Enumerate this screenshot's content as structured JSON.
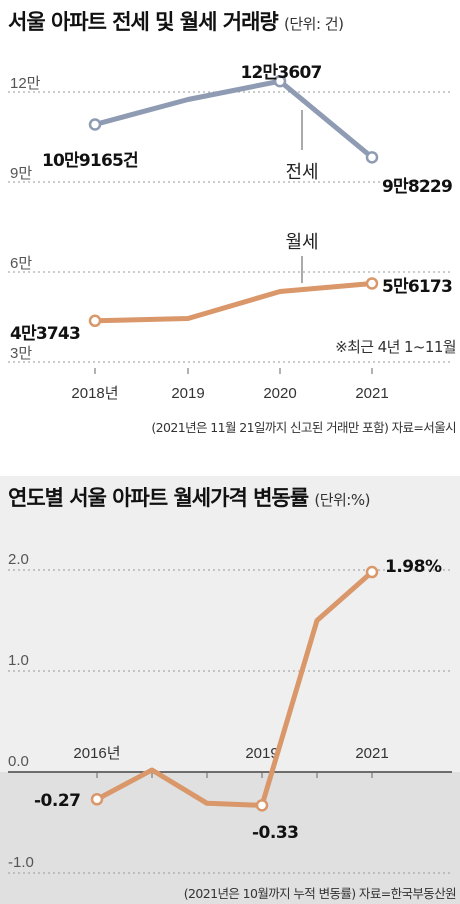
{
  "chart_data": [
    {
      "type": "line",
      "title": "서울 아파트 전세 및 월세 거래량",
      "unit": "(단위: 건)",
      "categories": [
        "2018년",
        "2019",
        "2020",
        "2021"
      ],
      "y_ticks": [
        "12만",
        "9만",
        "6만",
        "3만"
      ],
      "ylim": [
        30000,
        125000
      ],
      "series": [
        {
          "name": "전세",
          "color": "#8e9bb2",
          "values": [
            109165,
            117500,
            123607,
            98229
          ],
          "labels": [
            "10만9165건",
            "",
            "12만3607",
            "9만8229"
          ]
        },
        {
          "name": "월세",
          "color": "#d9976a",
          "values": [
            43743,
            44500,
            53500,
            56173
          ],
          "labels": [
            "4만3743",
            "",
            "",
            "5만6173"
          ]
        }
      ],
      "note": "※최근 4년 1~11월",
      "source": "(2021년은 11월 21일까지 신고된 거래만 포함) 자료=서울시"
    },
    {
      "type": "line",
      "title": "연도별 서울 아파트 월세가격 변동률",
      "unit": "(단위:%)",
      "x": [
        2016,
        2017,
        2018,
        2019,
        2020,
        2021
      ],
      "x_tick_labels": [
        "2016년",
        "2019",
        "2021"
      ],
      "y_ticks": [
        "2.0",
        "1.0",
        "0.0",
        "-1.0"
      ],
      "ylim": [
        -1.0,
        2.0
      ],
      "series": [
        {
          "name": "",
          "color": "#d9976a",
          "values": [
            -0.27,
            0.02,
            -0.31,
            -0.33,
            1.5,
            1.98
          ],
          "labels": [
            "-0.27",
            "",
            "",
            "-0.33",
            "",
            "1.98%"
          ]
        }
      ],
      "source": "(2021년은 10월까지 누적 변동률) 자료=한국부동산원"
    }
  ],
  "colors": {
    "grid": "#9a9a9a",
    "text": "#222222",
    "jeonse": "#8e9bb2",
    "wolse": "#d9976a",
    "panel2_bg": "#efefef"
  }
}
